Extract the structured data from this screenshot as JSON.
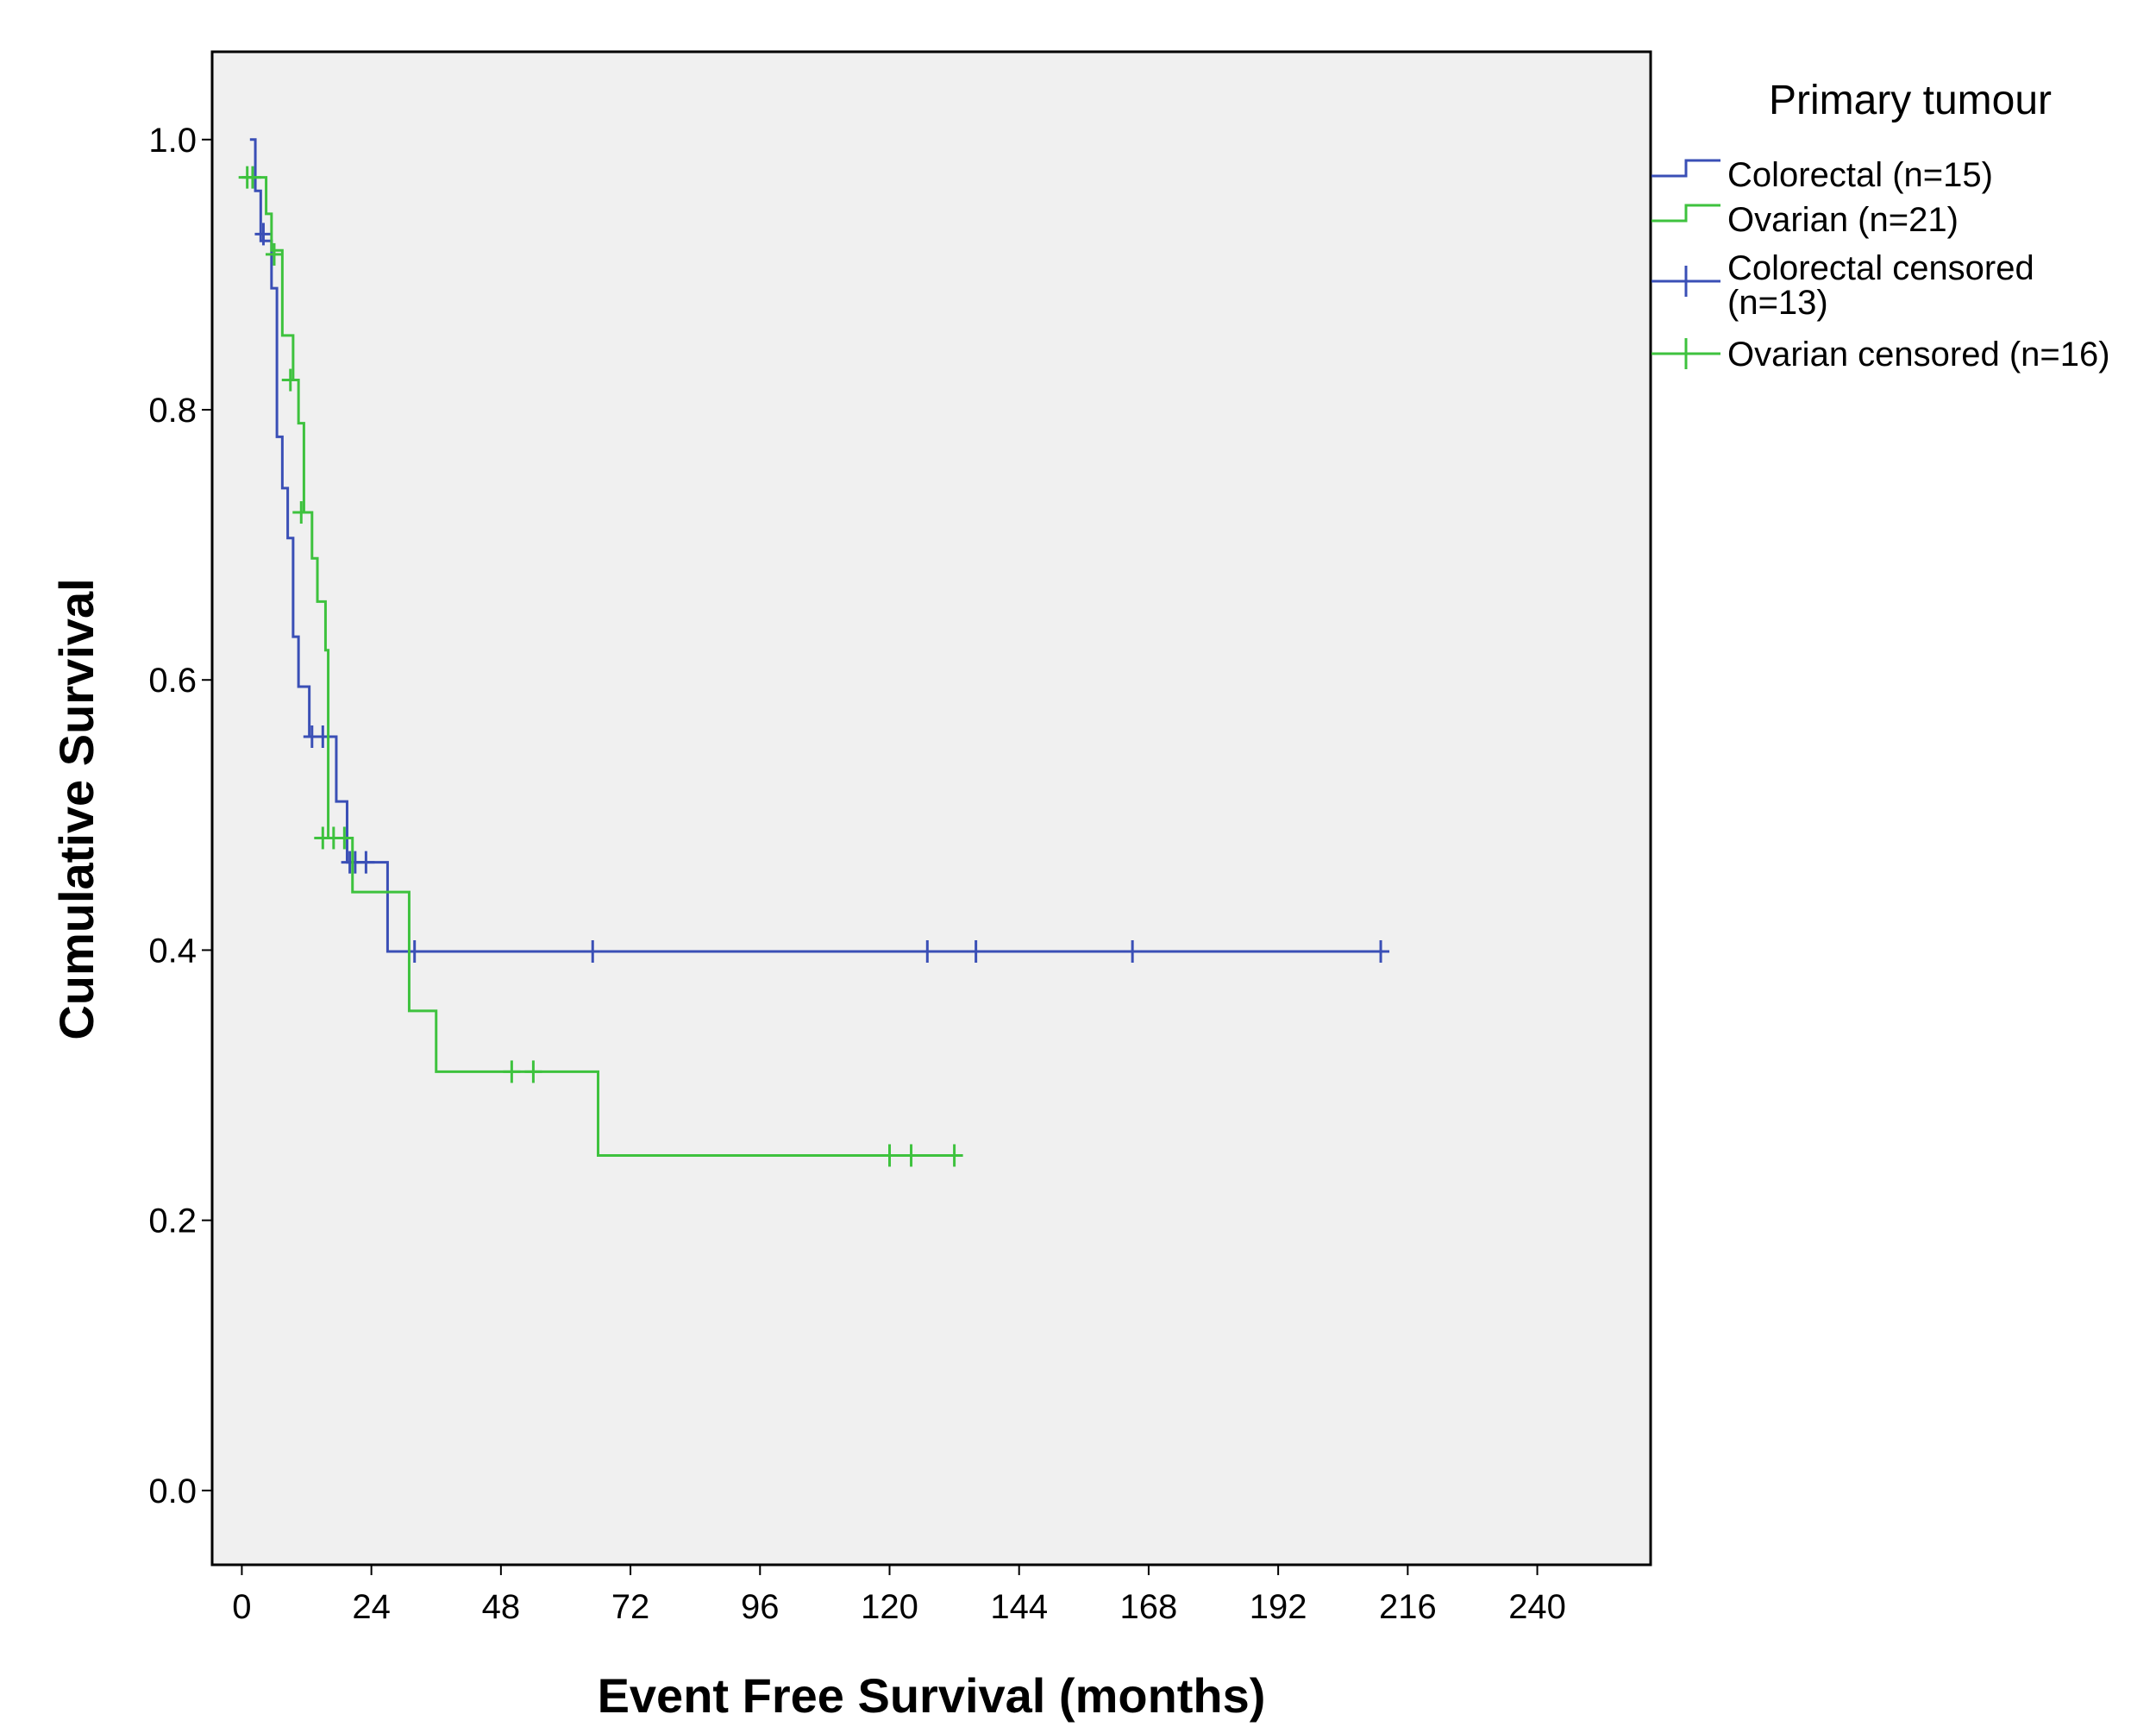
{
  "chart_data": {
    "type": "line",
    "subtype": "kaplan-meier-step",
    "xlabel": "Event Free Survival (months)",
    "ylabel": "Cumulative Survival",
    "xlim": [
      -5.5,
      261
    ],
    "ylim": [
      -0.055,
      1.065
    ],
    "x_ticks": [
      0,
      24,
      48,
      72,
      96,
      120,
      144,
      168,
      192,
      216,
      240
    ],
    "y_ticks": [
      0.0,
      0.2,
      0.4,
      0.6,
      0.8,
      1.0
    ],
    "y_tick_labels": [
      "0.0",
      "0.2",
      "0.4",
      "0.6",
      "0.8",
      "1.0"
    ],
    "grid": false,
    "background": "#f0f0f0",
    "legend": {
      "title": "Primary tumour",
      "position": "right",
      "entries": [
        {
          "label": "Colorectal (n=15)",
          "kind": "line",
          "series": 0
        },
        {
          "label": "Ovarian (n=21)",
          "kind": "line",
          "series": 1
        },
        {
          "label_lines": [
            "Colorectal censored",
            "(n=13)"
          ],
          "kind": "censor",
          "series": 0
        },
        {
          "label": "Ovarian censored (n=16)",
          "kind": "censor",
          "series": 1
        }
      ]
    },
    "series": [
      {
        "name": "Colorectal",
        "color": "#3a4fb6",
        "steps": [
          [
            1.5,
            1.0
          ],
          [
            2.5,
            0.962
          ],
          [
            3.5,
            0.925
          ],
          [
            5.5,
            0.89
          ],
          [
            6.5,
            0.78
          ],
          [
            7.5,
            0.742
          ],
          [
            8.5,
            0.705
          ],
          [
            9.5,
            0.632
          ],
          [
            10.5,
            0.595
          ],
          [
            12.5,
            0.558
          ],
          [
            17.5,
            0.51
          ],
          [
            19.5,
            0.465
          ],
          [
            27.0,
            0.399
          ],
          [
            212.0,
            0.399
          ]
        ],
        "censored": [
          [
            4,
            0.93
          ],
          [
            13,
            0.558
          ],
          [
            15,
            0.558
          ],
          [
            20,
            0.465
          ],
          [
            21,
            0.465
          ],
          [
            23,
            0.465
          ],
          [
            32,
            0.399
          ],
          [
            65,
            0.399
          ],
          [
            127,
            0.399
          ],
          [
            136,
            0.399
          ],
          [
            165,
            0.399
          ],
          [
            211,
            0.399
          ]
        ]
      },
      {
        "name": "Ovarian",
        "color": "#3ec23e",
        "steps": [
          [
            0,
            0.972
          ],
          [
            4.5,
            0.945
          ],
          [
            5.5,
            0.918
          ],
          [
            7.5,
            0.855
          ],
          [
            9.5,
            0.822
          ],
          [
            10.5,
            0.79
          ],
          [
            11.5,
            0.724
          ],
          [
            13.0,
            0.69
          ],
          [
            14.0,
            0.658
          ],
          [
            15.5,
            0.622
          ],
          [
            16.0,
            0.483
          ],
          [
            20.5,
            0.443
          ],
          [
            31.0,
            0.355
          ],
          [
            36.0,
            0.31
          ],
          [
            66.0,
            0.248
          ],
          [
            133.0,
            0.248
          ]
        ],
        "censored": [
          [
            1,
            0.972
          ],
          [
            2,
            0.972
          ],
          [
            6,
            0.915
          ],
          [
            9,
            0.822
          ],
          [
            11,
            0.724
          ],
          [
            15,
            0.483
          ],
          [
            17,
            0.483
          ],
          [
            19,
            0.483
          ],
          [
            50,
            0.31
          ],
          [
            54,
            0.31
          ],
          [
            120,
            0.248
          ],
          [
            124,
            0.248
          ],
          [
            132,
            0.248
          ]
        ]
      }
    ]
  }
}
